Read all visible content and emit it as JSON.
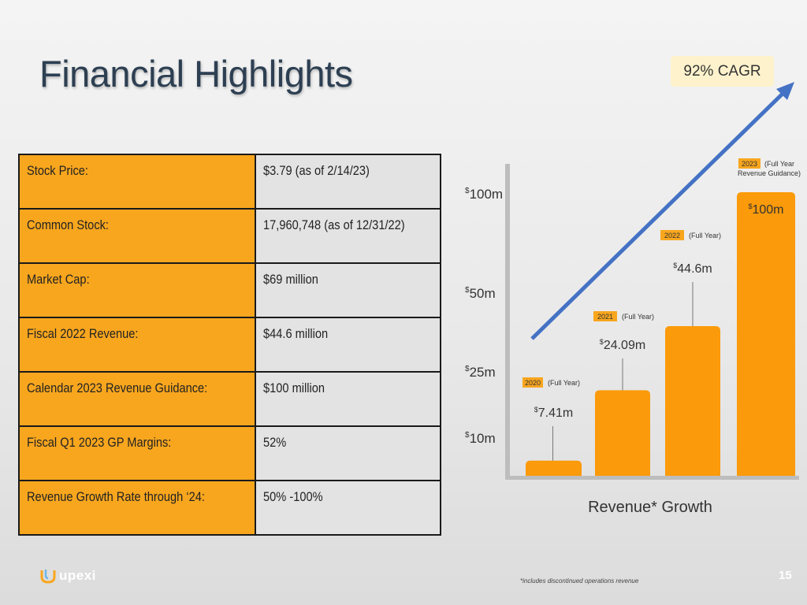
{
  "slide": {
    "title": "Financial Highlights",
    "footnote": "*includes discontinued operations revenue",
    "page_number": "15",
    "logo_text": "upexi"
  },
  "colors": {
    "accent_orange": "#f8a61e",
    "bar_orange": "#fb9a0a",
    "arrow_blue": "#4472c4",
    "title_color": "#2d3f52",
    "cagr_bg": "#fdf2cc"
  },
  "table": {
    "rows": [
      {
        "label": "Stock Price:",
        "value": "$3.79 (as of 2/14/23)"
      },
      {
        "label": "Common Stock:",
        "value": "17,960,748 (as of 12/31/22)"
      },
      {
        "label": "Market Cap:",
        "value": "$69 million"
      },
      {
        "label": "Fiscal 2022 Revenue:",
        "value": "$44.6 million"
      },
      {
        "label": "Calendar 2023 Revenue Guidance:",
        "value": "$100 million"
      },
      {
        "label": "Fiscal Q1 2023 GP Margins:",
        "value": "52%"
      },
      {
        "label": "Revenue Growth Rate through ‘24:",
        "value": "50% -100%"
      }
    ]
  },
  "chart_data": {
    "type": "bar",
    "title": "Revenue* Growth",
    "annotation": "92% CAGR",
    "y_axis_labels": [
      {
        "currency": "$",
        "text": "10m",
        "value": 10
      },
      {
        "currency": "$",
        "text": "25m",
        "value": 25
      },
      {
        "currency": "$",
        "text": "50m",
        "value": 50
      },
      {
        "currency": "$",
        "text": "100m",
        "value": 100
      }
    ],
    "categories": [
      "2020",
      "2021",
      "2022",
      "2023"
    ],
    "values": [
      7.41,
      24.09,
      44.6,
      100
    ],
    "value_labels": [
      {
        "currency": "$",
        "text": "7.41m"
      },
      {
        "currency": "$",
        "text": "24.09m"
      },
      {
        "currency": "$",
        "text": "44.6m"
      },
      {
        "currency": "$",
        "text": "100m"
      }
    ],
    "period_labels": [
      "(Full Year)",
      "(Full Year)",
      "(Full Year)",
      "(Full Year Revenue Guidance)"
    ],
    "period_label_lines": [
      [
        "(Full Year)"
      ],
      [
        "(Full Year)"
      ],
      [
        "(Full Year)"
      ],
      [
        "(Full Year",
        "Revenue Guidance)"
      ]
    ],
    "legend": "none",
    "grid": false
  }
}
